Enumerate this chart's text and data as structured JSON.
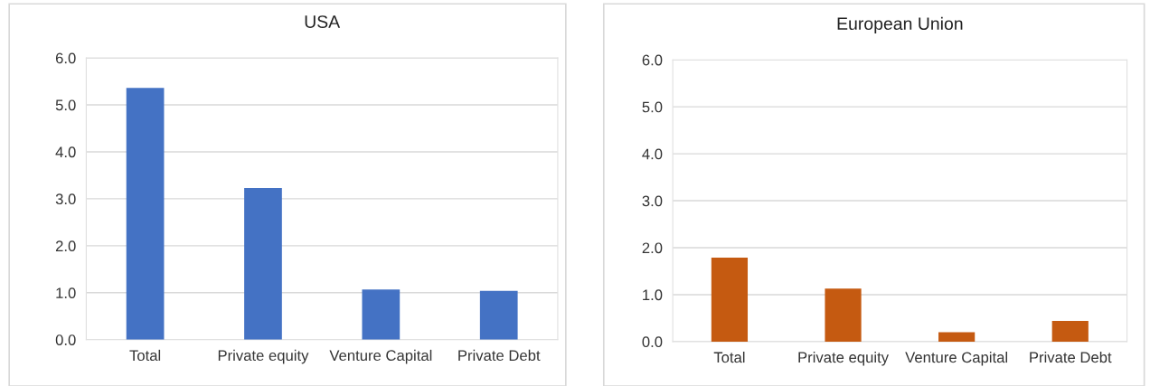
{
  "chart_data": [
    {
      "type": "bar",
      "title": "USA",
      "categories": [
        "Total",
        "Private equity",
        "Venture Capital",
        "Private Debt"
      ],
      "series": [
        {
          "color": "#4472c4",
          "values": [
            5.36,
            3.23,
            1.07,
            1.04
          ]
        }
      ],
      "ylim": [
        0,
        6
      ],
      "yticks": [
        {
          "value": 0,
          "label": "0.0"
        },
        {
          "value": 1,
          "label": "1.0"
        },
        {
          "value": 2,
          "label": "2.0"
        },
        {
          "value": 3,
          "label": "3.0"
        },
        {
          "value": 4,
          "label": "4.0"
        },
        {
          "value": 5,
          "label": "5.0"
        },
        {
          "value": 6,
          "label": "6.0"
        }
      ],
      "grid": "y"
    },
    {
      "type": "bar",
      "title": "European Union",
      "categories": [
        "Total",
        "Private equity",
        "Venture Capital",
        "Private Debt"
      ],
      "series": [
        {
          "color": "#c55a11",
          "values": [
            1.79,
            1.13,
            0.2,
            0.44
          ]
        }
      ],
      "ylim": [
        0,
        6
      ],
      "yticks": [
        {
          "value": 0,
          "label": "0.0"
        },
        {
          "value": 1,
          "label": "1.0"
        },
        {
          "value": 2,
          "label": "2.0"
        },
        {
          "value": 3,
          "label": "3.0"
        },
        {
          "value": 4,
          "label": "4.0"
        },
        {
          "value": 5,
          "label": "5.0"
        },
        {
          "value": 6,
          "label": "6.0"
        }
      ],
      "grid": "y"
    }
  ]
}
